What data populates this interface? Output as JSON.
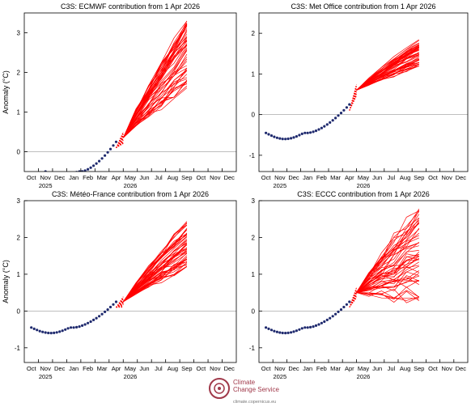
{
  "colors": {
    "observed": "#1f2a6e",
    "forecast": "#ff0000",
    "zero_line": "#aaaaaa",
    "axis": "#000000"
  },
  "x_ticks": [
    "Oct",
    "Nov",
    "Dec",
    "Jan",
    "Feb",
    "Mar",
    "Apr",
    "May",
    "Jun",
    "Jul",
    "Aug",
    "Sep",
    "Oct",
    "Nov",
    "Dec"
  ],
  "year_labels": [
    {
      "label": "2025",
      "month_index": 1
    },
    {
      "label": "2026",
      "month_index": 7
    }
  ],
  "ylabel": "Anomaly (°C)",
  "chart_data": [
    {
      "type": "line",
      "title": "C3S: ECMWF contribution from 1 Apr 2026",
      "ylim": [
        -0.5,
        3.5
      ],
      "yticks": [
        0,
        1,
        2,
        3
      ],
      "observed": {
        "start_index": 1.0,
        "end_index": 6.0,
        "start_value": -0.5,
        "end_value": 0.1
      },
      "forecast": {
        "start_index": 6.5,
        "end_index": 11.0,
        "start_value": 0.35,
        "members": 51,
        "end_center": 2.3,
        "end_min": 1.6,
        "end_max": 3.3
      }
    },
    {
      "type": "line",
      "title": "C3S: Met Office contribution from 1 Apr 2026",
      "ylim": [
        -1.4,
        2.5
      ],
      "yticks": [
        -1,
        0,
        1,
        2
      ],
      "observed": {
        "start_index": 0.0,
        "end_index": 6.0,
        "start_value": -0.45,
        "end_value": 0.1
      },
      "forecast": {
        "start_index": 6.5,
        "end_index": 11.0,
        "start_value": 0.6,
        "members": 51,
        "end_center": 1.55,
        "end_min": 1.15,
        "end_max": 1.85
      }
    },
    {
      "type": "line",
      "title": "C3S: Météo-France contribution from 1 Apr 2026",
      "ylim": [
        -1.4,
        3.0
      ],
      "yticks": [
        -1,
        0,
        1,
        2,
        3
      ],
      "observed": {
        "start_index": 0.0,
        "end_index": 6.0,
        "start_value": -0.45,
        "end_value": 0.1
      },
      "forecast": {
        "start_index": 6.5,
        "end_index": 11.0,
        "start_value": 0.25,
        "members": 51,
        "end_center": 2.0,
        "end_min": 1.2,
        "end_max": 2.5
      }
    },
    {
      "type": "line",
      "title": "C3S: ECCC contribution from 1 Apr 2026",
      "ylim": [
        -1.4,
        3.0
      ],
      "yticks": [
        -1,
        0,
        1,
        2,
        3
      ],
      "observed": {
        "start_index": 0.0,
        "end_index": 6.0,
        "start_value": -0.45,
        "end_value": 0.1
      },
      "forecast": {
        "start_index": 6.5,
        "end_index": 11.0,
        "start_value": 0.5,
        "members": 51,
        "end_center": 1.6,
        "end_min": 0.2,
        "end_max": 2.8
      }
    }
  ],
  "logo": {
    "line1": "Climate",
    "line2": "Change Service",
    "url": "climate.copernicus.eu"
  }
}
